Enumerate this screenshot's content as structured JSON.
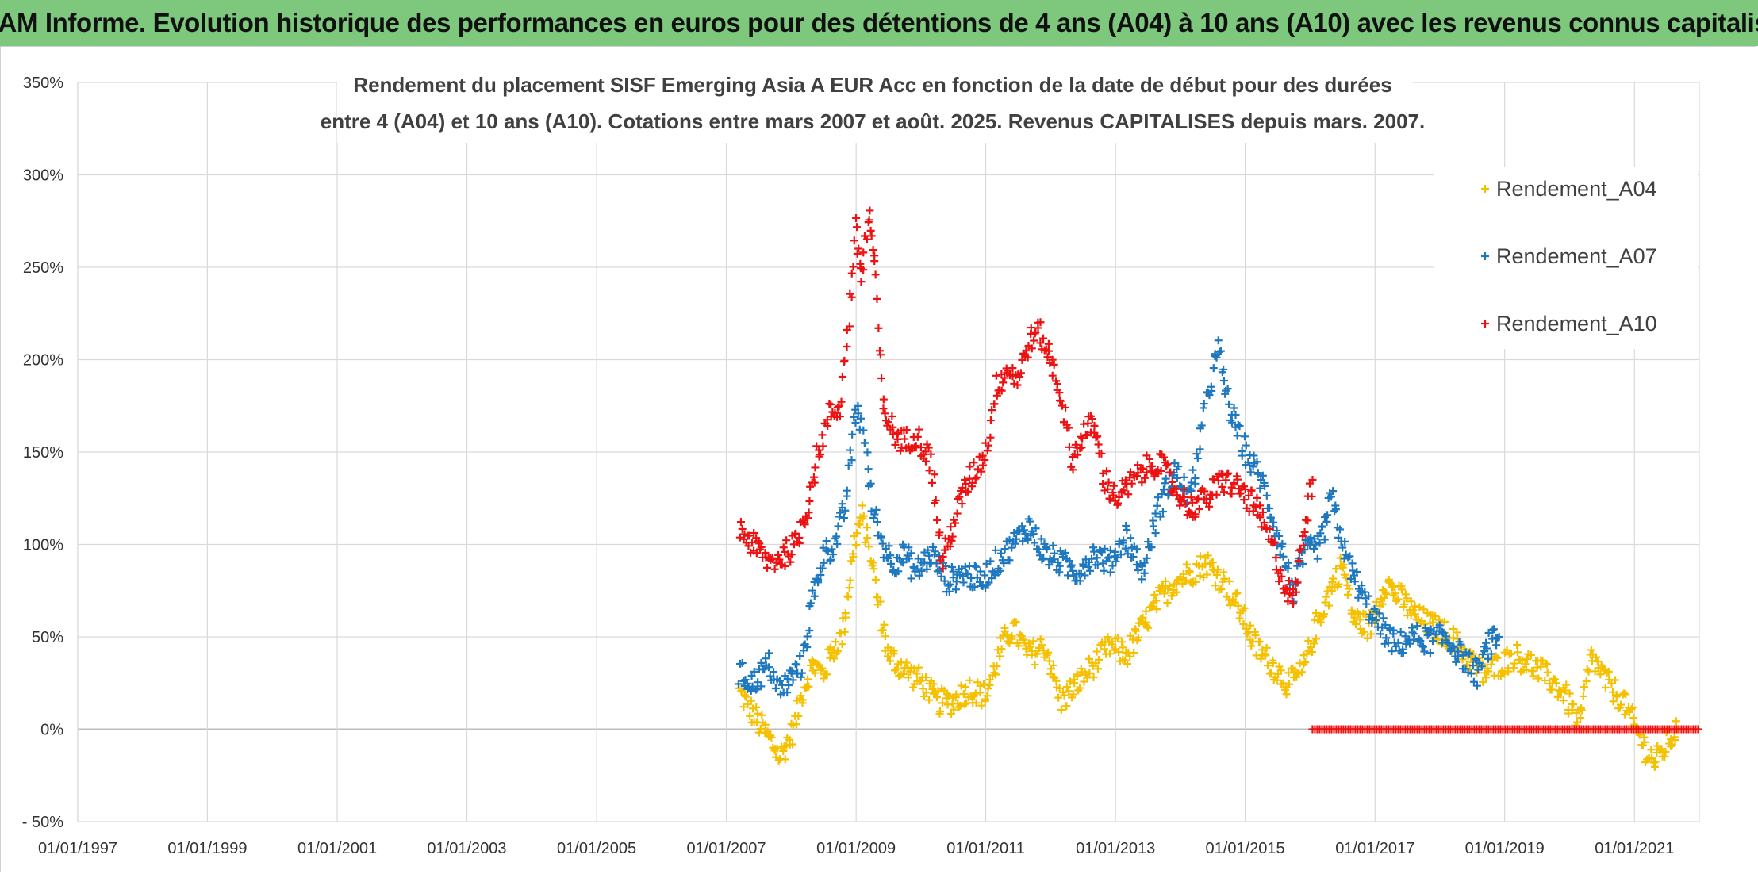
{
  "header": {
    "title": "ADAM Informe. Evolution historique des performances en euros pour des détentions de 4 ans (A04) à 10 ans (A10) avec les revenus connus capitalisés"
  },
  "chart_data": {
    "type": "scatter",
    "title_line1": "Rendement du placement SISF Emerging Asia A EUR Acc en fonction de la date de début pour des durées",
    "title_line2": "entre 4 (A04) et 10 ans (A10). Cotations entre mars 2007 et août. 2025. Revenus CAPITALISES depuis mars. 2007.",
    "x_type": "date",
    "xlim": [
      "1997-01-01",
      "2022-01-01"
    ],
    "ylim": [
      -50,
      350
    ],
    "y_unit": "%",
    "x_ticks": [
      "01/01/1997",
      "01/01/1999",
      "01/01/2001",
      "01/01/2003",
      "01/01/2005",
      "01/01/2007",
      "01/01/2009",
      "01/01/2011",
      "01/01/2013",
      "01/01/2015",
      "01/01/2017",
      "01/01/2019",
      "01/01/2021"
    ],
    "y_ticks": [
      "- 50%",
      "0%",
      "50%",
      "100%",
      "150%",
      "200%",
      "250%",
      "300%",
      "350%"
    ],
    "grid": true,
    "legend_position": "top-right",
    "marker": "+",
    "series": [
      {
        "name": "Rendement_A04",
        "color": "#f5c000",
        "points": [
          [
            "2007-03-15",
            20
          ],
          [
            "2007-06-01",
            8
          ],
          [
            "2007-09-01",
            -5
          ],
          [
            "2007-11-01",
            -15
          ],
          [
            "2008-01-15",
            0
          ],
          [
            "2008-03-01",
            20
          ],
          [
            "2008-05-01",
            35
          ],
          [
            "2008-07-01",
            30
          ],
          [
            "2008-09-01",
            45
          ],
          [
            "2008-10-15",
            50
          ],
          [
            "2008-11-15",
            75
          ],
          [
            "2009-01-01",
            105
          ],
          [
            "2009-02-01",
            115
          ],
          [
            "2009-03-15",
            100
          ],
          [
            "2009-05-01",
            70
          ],
          [
            "2009-07-01",
            40
          ],
          [
            "2009-09-01",
            35
          ],
          [
            "2009-11-01",
            30
          ],
          [
            "2010-01-15",
            25
          ],
          [
            "2010-04-01",
            15
          ],
          [
            "2010-07-01",
            15
          ],
          [
            "2010-10-01",
            22
          ],
          [
            "2011-01-01",
            18
          ],
          [
            "2011-04-01",
            45
          ],
          [
            "2011-06-01",
            55
          ],
          [
            "2011-09-01",
            40
          ],
          [
            "2011-12-01",
            45
          ],
          [
            "2012-03-01",
            15
          ],
          [
            "2012-06-01",
            25
          ],
          [
            "2012-09-01",
            35
          ],
          [
            "2012-12-01",
            45
          ],
          [
            "2013-03-01",
            40
          ],
          [
            "2013-06-01",
            55
          ],
          [
            "2013-09-01",
            70
          ],
          [
            "2013-12-01",
            80
          ],
          [
            "2014-03-01",
            85
          ],
          [
            "2014-06-01",
            90
          ],
          [
            "2014-09-01",
            80
          ],
          [
            "2014-12-01",
            65
          ],
          [
            "2015-03-01",
            45
          ],
          [
            "2015-06-01",
            35
          ],
          [
            "2015-09-01",
            25
          ],
          [
            "2015-11-15",
            30
          ],
          [
            "2016-02-01",
            55
          ],
          [
            "2016-04-01",
            70
          ],
          [
            "2016-07-01",
            90
          ],
          [
            "2016-09-01",
            60
          ],
          [
            "2016-12-01",
            55
          ],
          [
            "2017-03-01",
            80
          ],
          [
            "2017-06-01",
            70
          ],
          [
            "2017-09-01",
            60
          ],
          [
            "2017-12-01",
            55
          ],
          [
            "2018-03-01",
            50
          ],
          [
            "2018-06-01",
            40
          ],
          [
            "2018-09-01",
            30
          ],
          [
            "2018-12-01",
            35
          ],
          [
            "2019-03-01",
            40
          ],
          [
            "2019-06-01",
            35
          ],
          [
            "2019-09-01",
            28
          ],
          [
            "2019-12-01",
            20
          ],
          [
            "2020-03-01",
            2
          ],
          [
            "2020-05-01",
            40
          ],
          [
            "2020-08-01",
            25
          ],
          [
            "2020-11-01",
            15
          ],
          [
            "2021-01-01",
            2
          ],
          [
            "2021-03-01",
            -10
          ],
          [
            "2021-05-01",
            -18
          ],
          [
            "2021-07-01",
            -8
          ],
          [
            "2021-09-01",
            0
          ]
        ]
      },
      {
        "name": "Rendement_A07",
        "color": "#1e78c0",
        "points": [
          [
            "2007-03-15",
            30
          ],
          [
            "2007-06-01",
            25
          ],
          [
            "2007-09-01",
            35
          ],
          [
            "2007-11-01",
            20
          ],
          [
            "2008-01-15",
            30
          ],
          [
            "2008-03-01",
            35
          ],
          [
            "2008-05-01",
            70
          ],
          [
            "2008-07-01",
            95
          ],
          [
            "2008-09-01",
            100
          ],
          [
            "2008-11-01",
            120
          ],
          [
            "2009-01-01",
            175
          ],
          [
            "2009-02-15",
            160
          ],
          [
            "2009-04-01",
            120
          ],
          [
            "2009-06-01",
            100
          ],
          [
            "2009-08-01",
            90
          ],
          [
            "2009-10-01",
            95
          ],
          [
            "2009-12-01",
            85
          ],
          [
            "2010-03-01",
            95
          ],
          [
            "2010-06-01",
            80
          ],
          [
            "2010-09-01",
            85
          ],
          [
            "2010-12-01",
            80
          ],
          [
            "2011-03-01",
            90
          ],
          [
            "2011-06-01",
            100
          ],
          [
            "2011-09-01",
            110
          ],
          [
            "2011-12-01",
            95
          ],
          [
            "2012-03-01",
            90
          ],
          [
            "2012-06-01",
            85
          ],
          [
            "2012-09-01",
            95
          ],
          [
            "2012-12-01",
            90
          ],
          [
            "2013-03-01",
            105
          ],
          [
            "2013-06-01",
            85
          ],
          [
            "2013-09-01",
            120
          ],
          [
            "2013-12-01",
            140
          ],
          [
            "2014-03-01",
            125
          ],
          [
            "2014-06-01",
            180
          ],
          [
            "2014-08-01",
            205
          ],
          [
            "2014-10-01",
            175
          ],
          [
            "2015-01-01",
            150
          ],
          [
            "2015-04-01",
            135
          ],
          [
            "2015-07-01",
            105
          ],
          [
            "2015-10-01",
            75
          ],
          [
            "2015-12-01",
            95
          ],
          [
            "2016-03-01",
            100
          ],
          [
            "2016-05-01",
            125
          ],
          [
            "2016-08-01",
            90
          ],
          [
            "2016-11-01",
            70
          ],
          [
            "2017-02-01",
            55
          ],
          [
            "2017-05-01",
            45
          ],
          [
            "2017-08-01",
            50
          ],
          [
            "2017-11-01",
            48
          ],
          [
            "2018-02-01",
            50
          ],
          [
            "2018-05-01",
            40
          ],
          [
            "2018-08-01",
            30
          ],
          [
            "2018-10-01",
            45
          ],
          [
            "2018-12-01",
            50
          ]
        ]
      },
      {
        "name": "Rendement_A10",
        "color": "#ee1111",
        "points": [
          [
            "2007-03-15",
            108
          ],
          [
            "2007-06-01",
            100
          ],
          [
            "2007-09-01",
            90
          ],
          [
            "2007-12-01",
            95
          ],
          [
            "2008-02-01",
            100
          ],
          [
            "2008-04-01",
            120
          ],
          [
            "2008-06-01",
            150
          ],
          [
            "2008-08-01",
            170
          ],
          [
            "2008-10-01",
            175
          ],
          [
            "2008-11-15",
            215
          ],
          [
            "2009-01-01",
            270
          ],
          [
            "2009-02-01",
            245
          ],
          [
            "2009-03-15",
            280
          ],
          [
            "2009-04-15",
            250
          ],
          [
            "2009-06-01",
            175
          ],
          [
            "2009-08-01",
            160
          ],
          [
            "2009-10-01",
            155
          ],
          [
            "2009-12-01",
            160
          ],
          [
            "2010-03-01",
            145
          ],
          [
            "2010-05-01",
            90
          ],
          [
            "2010-07-01",
            110
          ],
          [
            "2010-09-01",
            130
          ],
          [
            "2010-11-01",
            140
          ],
          [
            "2011-01-01",
            150
          ],
          [
            "2011-03-01",
            185
          ],
          [
            "2011-05-01",
            195
          ],
          [
            "2011-07-01",
            190
          ],
          [
            "2011-09-01",
            210
          ],
          [
            "2011-11-01",
            215
          ],
          [
            "2012-01-01",
            200
          ],
          [
            "2012-03-01",
            180
          ],
          [
            "2012-05-01",
            145
          ],
          [
            "2012-07-01",
            160
          ],
          [
            "2012-09-01",
            165
          ],
          [
            "2012-11-01",
            135
          ],
          [
            "2013-01-01",
            125
          ],
          [
            "2013-03-01",
            130
          ],
          [
            "2013-06-01",
            140
          ],
          [
            "2013-09-01",
            145
          ],
          [
            "2013-12-01",
            130
          ],
          [
            "2014-03-01",
            120
          ],
          [
            "2014-06-01",
            125
          ],
          [
            "2014-09-01",
            135
          ],
          [
            "2014-12-01",
            130
          ],
          [
            "2015-03-01",
            120
          ],
          [
            "2015-06-01",
            100
          ],
          [
            "2015-08-01",
            80
          ],
          [
            "2015-10-01",
            70
          ],
          [
            "2015-12-01",
            110
          ],
          [
            "2016-01-15",
            135
          ]
        ]
      }
    ],
    "zero_series_marks": {
      "color": "#ee1111",
      "from": "2016-01-15",
      "to": "2021-12-31",
      "value": 0
    }
  }
}
